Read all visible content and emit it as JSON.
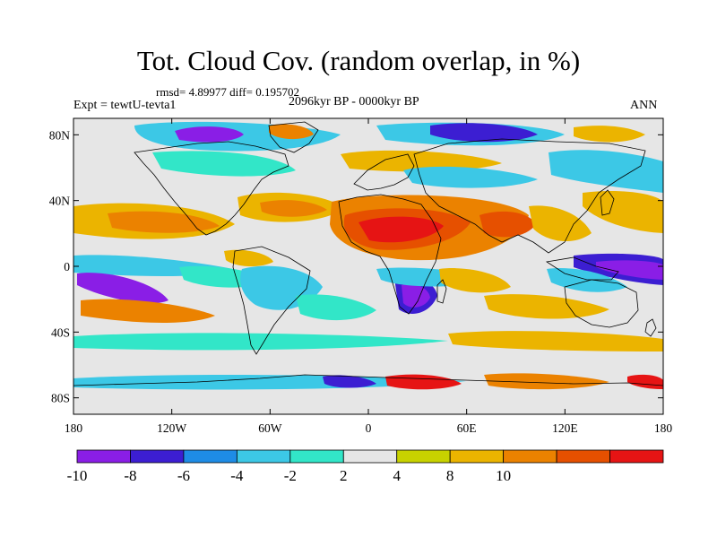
{
  "figure": {
    "title": "Tot. Cloud Cov. (random overlap, in %)",
    "stats": "rmsd= 4.89977 diff= 0.195702",
    "experiment": "Expt = tewtU-tevta1",
    "period": "2096kyr BP - 0000kyr BP",
    "season": "ANN"
  },
  "axes": {
    "lon_ticks": [
      {
        "lon": -180,
        "label": "180"
      },
      {
        "lon": -120,
        "label": "120W"
      },
      {
        "lon": -60,
        "label": "60W"
      },
      {
        "lon": 0,
        "label": "0"
      },
      {
        "lon": 60,
        "label": "60E"
      },
      {
        "lon": 120,
        "label": "120E"
      },
      {
        "lon": 180,
        "label": "180"
      }
    ],
    "lat_ticks": [
      {
        "lat": 80,
        "label": "80N"
      },
      {
        "lat": 40,
        "label": "40N"
      },
      {
        "lat": 0,
        "label": "0"
      },
      {
        "lat": -40,
        "label": "40S"
      },
      {
        "lat": -80,
        "label": "80S"
      }
    ],
    "lon_range": [
      -180,
      180
    ],
    "lat_range": [
      -90,
      90
    ]
  },
  "colorbar": {
    "colors": [
      "#8a1ee6",
      "#3c1ed2",
      "#1e8ce6",
      "#3cc8e6",
      "#32e6c8",
      "#e6e6e6",
      "#c8d200",
      "#ebb400",
      "#eb8200",
      "#e65000",
      "#e61414"
    ],
    "labels": [
      "-10",
      "-8",
      "-6",
      "-4",
      "-2",
      "2",
      "4",
      "8",
      "10"
    ]
  },
  "palette": {
    "neutral": "#e6e6e6",
    "coast": "#000000"
  }
}
